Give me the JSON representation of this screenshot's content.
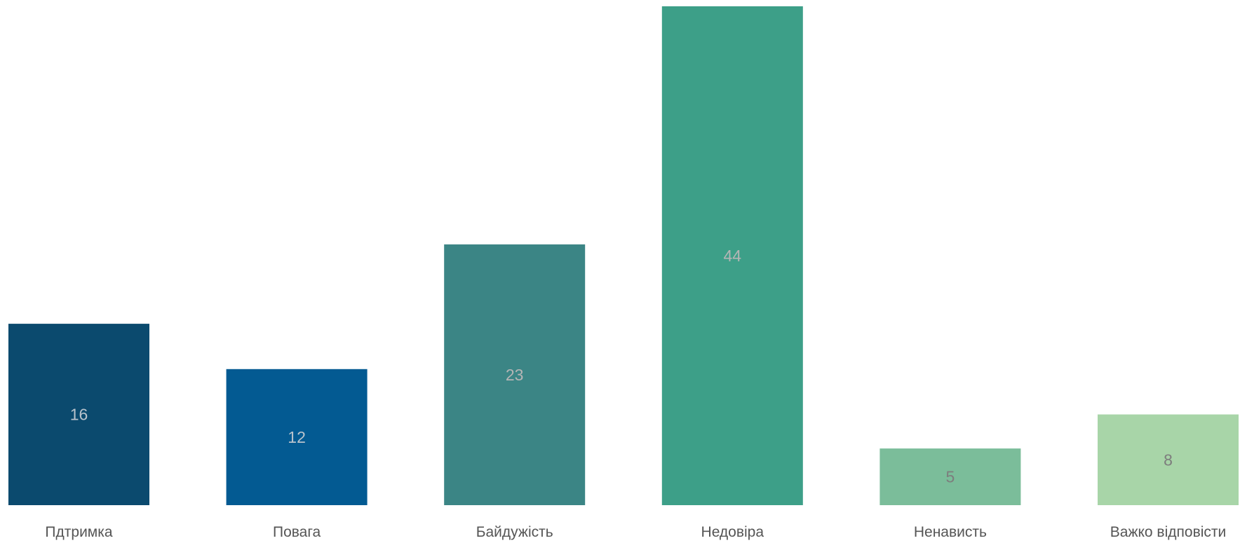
{
  "chart_data": {
    "type": "bar",
    "categories": [
      "Пдтримка",
      "Повага",
      "Байдужість",
      "Недовіра",
      "Ненависть",
      "Важко відповісти"
    ],
    "values": [
      16,
      12,
      23,
      44,
      5,
      8
    ],
    "title": "",
    "xlabel": "",
    "ylabel": "",
    "ylim": [
      0,
      44
    ],
    "grid": false,
    "legend": "none",
    "bar_colors": [
      "#0b4a6e",
      "#035a92",
      "#3b8585",
      "#3d9f88",
      "#7bbd9a",
      "#a8d5a8"
    ],
    "value_label_colors": [
      "#b9c3cc",
      "#b9c3cc",
      "#b5b5b5",
      "#b5b5b5",
      "#7d7d7d",
      "#7d7d7d"
    ]
  }
}
